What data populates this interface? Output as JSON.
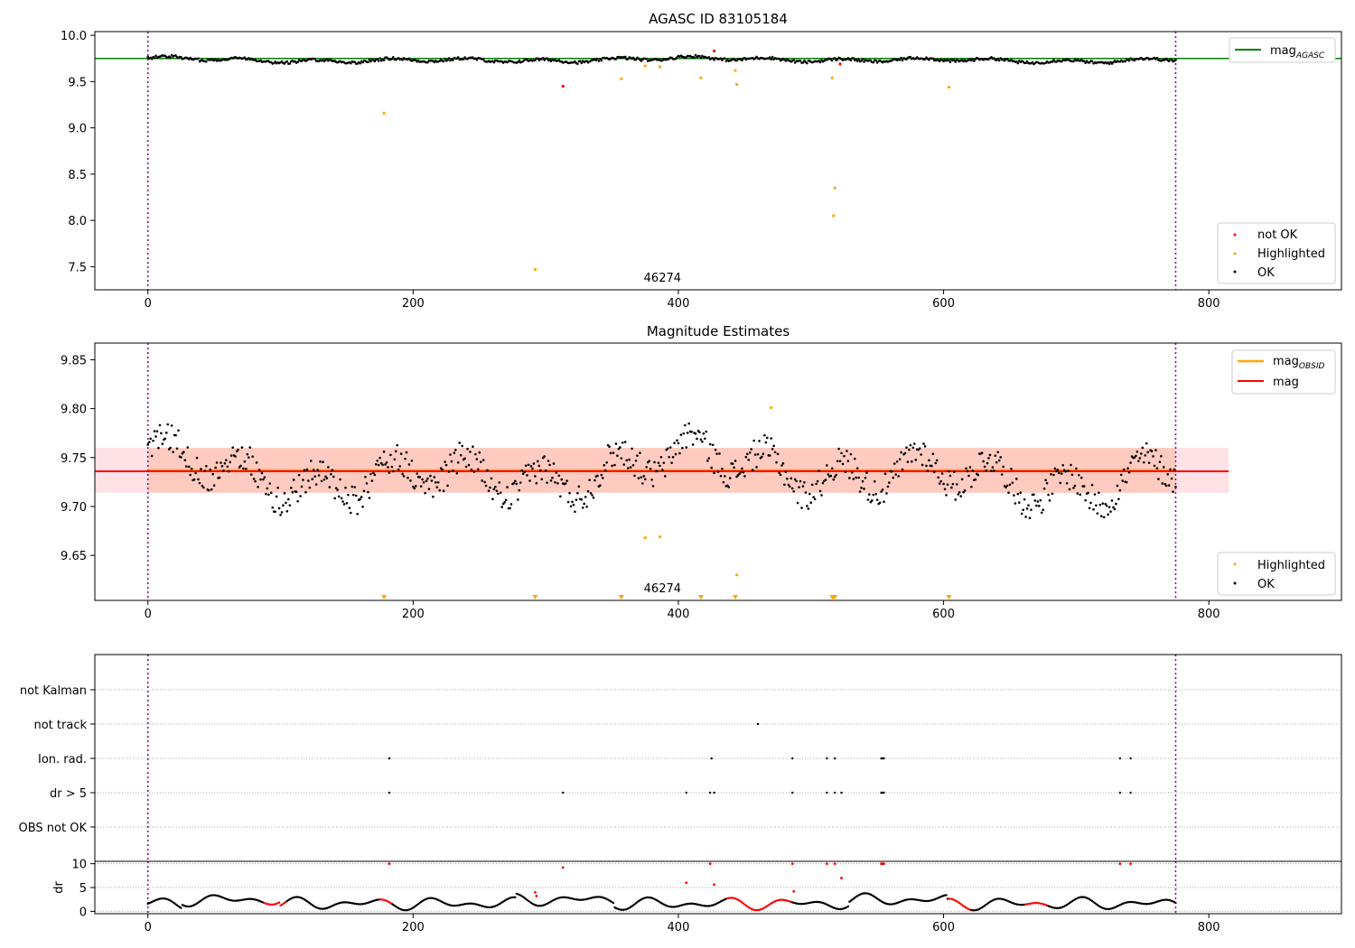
{
  "chart_data": [
    {
      "type": "scatter",
      "title": "AGASC ID 83105184",
      "xlim": [
        -40,
        900
      ],
      "ylim": [
        7.25,
        10.04
      ],
      "xticks": [
        0,
        200,
        400,
        600,
        800
      ],
      "yticks": [
        7.5,
        8.0,
        8.5,
        9.0,
        9.5,
        10.0
      ],
      "ytick_labels": [
        "7.5",
        "8.0",
        "8.5",
        "9.0",
        "9.5",
        "10.0"
      ],
      "obsid_label": "46274",
      "obsid_label_x": 388,
      "vlines_x": [
        0,
        775
      ],
      "reference_line": {
        "name": "mag_AGASC",
        "label_main": "mag",
        "label_sub": "AGASC",
        "y": 9.75,
        "color": "#008000"
      },
      "legend_top": "top-right",
      "legend": [
        {
          "label": "not OK",
          "color": "#ff0000"
        },
        {
          "label": "Highlighted",
          "color": "#ffa500"
        },
        {
          "label": "OK",
          "color": "#000000"
        }
      ],
      "legend_placement": "lower right",
      "series": [
        {
          "name": "OK",
          "color": "#000000",
          "note": "~775 points, x 0-775, y around 9.67-9.80 following baseline trend"
        },
        {
          "name": "Highlighted",
          "color": "#ffa500",
          "x": [
            178,
            292,
            357,
            375,
            386,
            417,
            443,
            444,
            516,
            517,
            518,
            604
          ],
          "y": [
            9.16,
            7.47,
            9.53,
            9.67,
            9.66,
            9.54,
            9.62,
            9.47,
            9.54,
            8.05,
            8.35,
            9.44
          ]
        },
        {
          "name": "not OK",
          "color": "#ff0000",
          "x": [
            313,
            427,
            522
          ],
          "y": [
            9.45,
            9.83,
            9.69
          ]
        }
      ]
    },
    {
      "type": "scatter",
      "title": "Magnitude Estimates",
      "xlim": [
        -40,
        900
      ],
      "ylim": [
        9.604,
        9.867
      ],
      "xticks": [
        0,
        200,
        400,
        600,
        800
      ],
      "yticks": [
        9.65,
        9.7,
        9.75,
        9.8,
        9.85
      ],
      "ytick_labels": [
        "9.65",
        "9.70",
        "9.75",
        "9.80",
        "9.85"
      ],
      "obsid_label": "46274",
      "obsid_label_x": 388,
      "vlines_x": [
        0,
        775
      ],
      "bands": [
        {
          "x": [
            -40,
            815
          ],
          "y": [
            9.714,
            9.76
          ],
          "color": "#ffb6c1"
        },
        {
          "x": [
            0,
            775
          ],
          "y": [
            9.714,
            9.76
          ],
          "color": "#ffa07a"
        }
      ],
      "lines": [
        {
          "name": "mag_OBSID",
          "label_main": "mag",
          "label_sub": "OBSID",
          "x": [
            0,
            775
          ],
          "y": 9.737,
          "color": "#ffa500"
        },
        {
          "name": "mag",
          "label_main": "mag",
          "x": [
            -40,
            815
          ],
          "y": 9.736,
          "color": "#ff0000"
        }
      ],
      "legend_top": "top-right",
      "legend": [
        {
          "label": "Highlighted",
          "color": "#ffa500"
        },
        {
          "label": "OK",
          "color": "#000000"
        }
      ],
      "legend_placement": "lower right",
      "series": [
        {
          "name": "OK",
          "color": "#000000",
          "note": "~775 points, x 0-775, y around 9.67-9.79"
        },
        {
          "name": "Highlighted",
          "color": "#ffa500",
          "x": [
            375,
            386,
            444,
            470
          ],
          "y": [
            9.668,
            9.669,
            9.63,
            9.801
          ]
        },
        {
          "name": "Highlighted (off-scale, below)",
          "color": "#ffa500",
          "x": [
            178,
            292,
            357,
            417,
            443,
            516,
            517,
            518,
            604
          ],
          "marker": "triangle-down"
        }
      ]
    },
    {
      "type": "scatter",
      "title": "",
      "xlim": [
        -40,
        900
      ],
      "categories": [
        "OBS not OK",
        "dr > 5",
        "Ion. rad.",
        "not track",
        "not Kalman"
      ],
      "flags": {
        "not track": [
          460
        ],
        "Ion. rad.": [
          182,
          425,
          486,
          512,
          518,
          553,
          554,
          555,
          733,
          741
        ],
        "dr > 5": [
          182,
          313,
          406,
          424,
          427,
          486,
          512,
          518,
          523,
          553,
          554,
          555,
          733,
          741
        ]
      },
      "vlines_x": [
        0,
        775
      ]
    },
    {
      "type": "scatter",
      "ylabel": "dr",
      "xlim": [
        -40,
        900
      ],
      "ylim": [
        -0.5,
        10.5
      ],
      "xticks": [
        0,
        200,
        400,
        600,
        800
      ],
      "yticks": [
        0,
        5,
        10
      ],
      "ytick_labels": [
        "0",
        "5",
        "10"
      ],
      "vlines_x": [
        0,
        775
      ],
      "series": [
        {
          "name": "OK",
          "color": "#000000",
          "note": "dr 0-3 wavy pattern"
        },
        {
          "name": "not OK",
          "color": "#ff0000",
          "x": [
            182,
            292,
            293,
            313,
            406,
            424,
            427,
            486,
            487,
            512,
            518,
            523,
            553,
            554,
            555,
            733,
            741
          ],
          "y": [
            10,
            4,
            3.2,
            9.2,
            6,
            10,
            5.6,
            10,
            4.2,
            10,
            10,
            7,
            10,
            10,
            10,
            10,
            10
          ]
        }
      ]
    }
  ]
}
